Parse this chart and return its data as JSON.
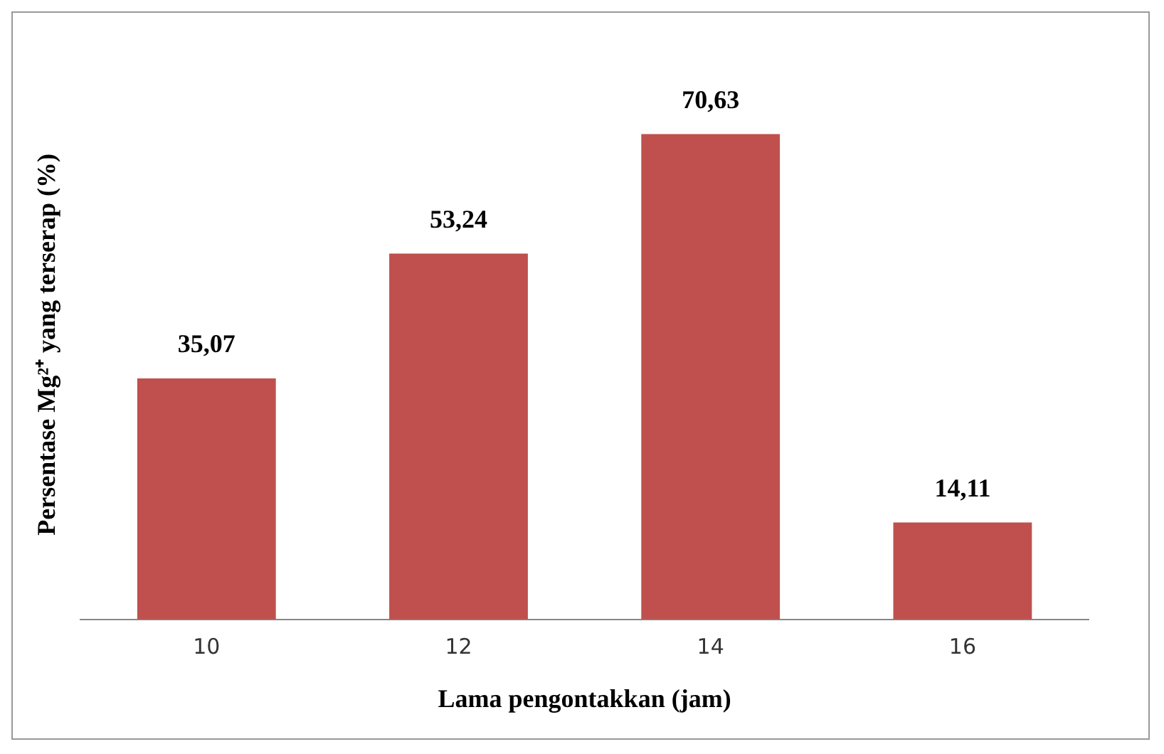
{
  "chart_data": {
    "type": "bar",
    "xlabel": "Lama pengontakkan (jam)",
    "ylabel": "Persentase Mg²⁺ yang terserap (%)",
    "categories": [
      "10",
      "12",
      "14",
      "16"
    ],
    "values": [
      35.07,
      53.24,
      70.63,
      14.11
    ],
    "value_labels": [
      "35,07",
      "53,24",
      "70,63",
      "14,11"
    ],
    "color": "#c0504d",
    "grid": false,
    "legend": false
  }
}
